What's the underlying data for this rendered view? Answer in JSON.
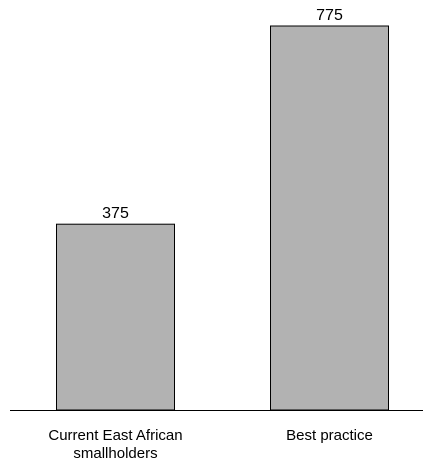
{
  "chart_data": {
    "type": "bar",
    "categories": [
      [
        "Current East African",
        "smallholders"
      ],
      [
        "Best practice"
      ]
    ],
    "values": [
      375,
      775
    ],
    "data_labels": [
      "375",
      "775"
    ],
    "title": "",
    "xlabel": "",
    "ylabel": "",
    "ylim": [
      0,
      800
    ],
    "grid": false,
    "legend": "none",
    "colors": {
      "bar_fill": "#b2b2b2",
      "bar_stroke": "#000000",
      "axis": "#000000",
      "text": "#000000"
    }
  }
}
